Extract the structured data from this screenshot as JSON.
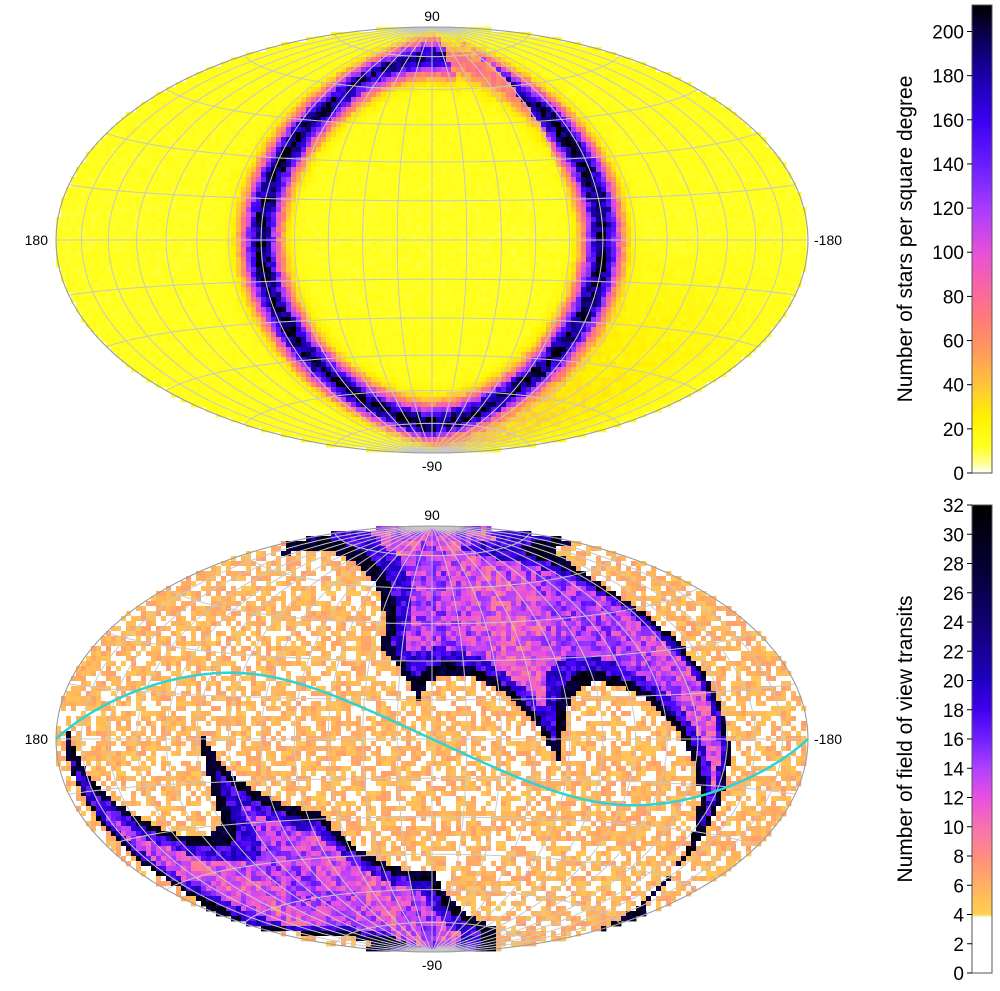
{
  "colors": {
    "background": "#ffffff",
    "graticule": "#c8c8c8",
    "ecliptic": "#2fd3d3",
    "map_border": "#9a9a9a"
  },
  "chart_data": [
    {
      "type": "heatmap",
      "projection": "hammer-aitoff",
      "grid": true,
      "lon_labels": {
        "left": "180",
        "right": "-180"
      },
      "lat_labels": {
        "top": "90",
        "bottom": "-90"
      },
      "colorbar": {
        "label": "Number of stars per square degree",
        "range": [
          0,
          212
        ],
        "ticks": [
          0,
          20,
          40,
          60,
          80,
          100,
          120,
          140,
          160,
          180,
          200
        ],
        "colormap": [
          [
            0,
            "#ffffff"
          ],
          [
            4,
            "#ffff9a"
          ],
          [
            12,
            "#ffff20"
          ],
          [
            25,
            "#fff200"
          ],
          [
            40,
            "#ffc43a"
          ],
          [
            55,
            "#ff9a5a"
          ],
          [
            70,
            "#ff7a78"
          ],
          [
            85,
            "#f864a6"
          ],
          [
            100,
            "#e650d8"
          ],
          [
            120,
            "#a63cff"
          ],
          [
            140,
            "#6a1cff"
          ],
          [
            160,
            "#3a00f0"
          ],
          [
            180,
            "#1a00a8"
          ],
          [
            198,
            "#0a0050"
          ],
          [
            212,
            "#000000"
          ]
        ]
      },
      "features": [
        {
          "kind": "ring",
          "description_free": true,
          "center_lon": 0,
          "center_lat": 0,
          "radius_deg": 75,
          "gap_lon": [
            -60,
            -20
          ],
          "intensity": 190
        }
      ]
    },
    {
      "type": "heatmap",
      "projection": "hammer-aitoff",
      "grid": true,
      "lon_labels": {
        "left": "180",
        "right": "-180"
      },
      "lat_labels": {
        "top": "90",
        "bottom": "-90"
      },
      "colorbar": {
        "label": "Number of field of view transits",
        "range": [
          0,
          32
        ],
        "ticks": [
          0,
          2,
          4,
          6,
          8,
          10,
          12,
          14,
          16,
          18,
          20,
          22,
          24,
          26,
          28,
          30,
          32
        ],
        "colormap": [
          [
            0,
            "#ffffff"
          ],
          [
            3.8,
            "#ffffff"
          ],
          [
            4,
            "#ffd050"
          ],
          [
            6,
            "#ffb060"
          ],
          [
            8,
            "#ff8c80"
          ],
          [
            10,
            "#f870b0"
          ],
          [
            12,
            "#e850e0"
          ],
          [
            14,
            "#b040ff"
          ],
          [
            16,
            "#7020ff"
          ],
          [
            18,
            "#4000f0"
          ],
          [
            20,
            "#2000c0"
          ],
          [
            24,
            "#100070"
          ],
          [
            28,
            "#050030"
          ],
          [
            32,
            "#000000"
          ]
        ]
      },
      "ecliptic": {
        "amplitude_deg": 23.4,
        "phase_lon": 0
      },
      "scanned_regions": [
        {
          "lon": 145,
          "lat": 18,
          "a_deg": 32,
          "b_deg": 58,
          "tilt": -35
        },
        {
          "lon": 70,
          "lat": 22,
          "a_deg": 38,
          "b_deg": 55,
          "tilt": -40
        },
        {
          "lon": 30,
          "lat": -5,
          "a_deg": 30,
          "b_deg": 52,
          "tilt": -30
        },
        {
          "lon": -30,
          "lat": -25,
          "a_deg": 30,
          "b_deg": 55,
          "tilt": -30
        },
        {
          "lon": -95,
          "lat": -30,
          "a_deg": 32,
          "b_deg": 55,
          "tilt": -30
        },
        {
          "lon": -160,
          "lat": 5,
          "a_deg": 25,
          "b_deg": 60,
          "tilt": -10
        }
      ]
    }
  ]
}
